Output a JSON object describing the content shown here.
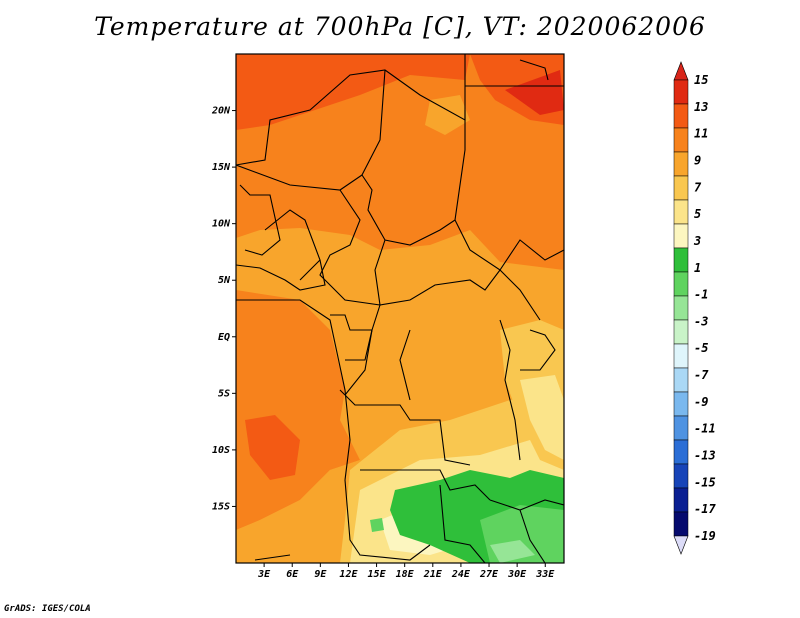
{
  "title": "Temperature at 700hPa [C], VT: 2020062006",
  "credit": "GrADS: IGES/COLA",
  "map": {
    "lon_range": [
      0,
      35
    ],
    "lat_range": [
      -20,
      25
    ],
    "lat_ticks": [
      {
        "lat": 20,
        "label": "20N"
      },
      {
        "lat": 15,
        "label": "15N"
      },
      {
        "lat": 10,
        "label": "10N"
      },
      {
        "lat": 5,
        "label": "5N"
      },
      {
        "lat": 0,
        "label": "EQ"
      },
      {
        "lat": -5,
        "label": "5S"
      },
      {
        "lat": -10,
        "label": "10S"
      },
      {
        "lat": -15,
        "label": "15S"
      }
    ],
    "lon_ticks": [
      {
        "lon": 3,
        "label": "3E"
      },
      {
        "lon": 6,
        "label": "6E"
      },
      {
        "lon": 9,
        "label": "9E"
      },
      {
        "lon": 12,
        "label": "12E"
      },
      {
        "lon": 15,
        "label": "15E"
      },
      {
        "lon": 18,
        "label": "18E"
      },
      {
        "lon": 21,
        "label": "21E"
      },
      {
        "lon": 24,
        "label": "24E"
      },
      {
        "lon": 27,
        "label": "27E"
      },
      {
        "lon": 30,
        "label": "30E"
      },
      {
        "lon": 33,
        "label": "33E"
      }
    ]
  },
  "colorbar": {
    "labels": [
      "15",
      "13",
      "11",
      "9",
      "7",
      "5",
      "3",
      "1",
      "-1",
      "-3",
      "-5",
      "-7",
      "-9",
      "-11",
      "-13",
      "-15",
      "-17",
      "-19"
    ],
    "colors": [
      "#e02a12",
      "#f35a14",
      "#f7821c",
      "#f8a52c",
      "#f9c750",
      "#fbe48a",
      "#fcf6c0",
      "#2fbf3a",
      "#5fd35f",
      "#96e596",
      "#c9f3c8",
      "#dff5fb",
      "#aad8f5",
      "#7ab8ee",
      "#4f93e2",
      "#2b6ed6",
      "#1744b8",
      "#0a1f92",
      "#050a6e"
    ],
    "top_color": "#d8251a",
    "bottom_color": "#dcdcf8"
  }
}
